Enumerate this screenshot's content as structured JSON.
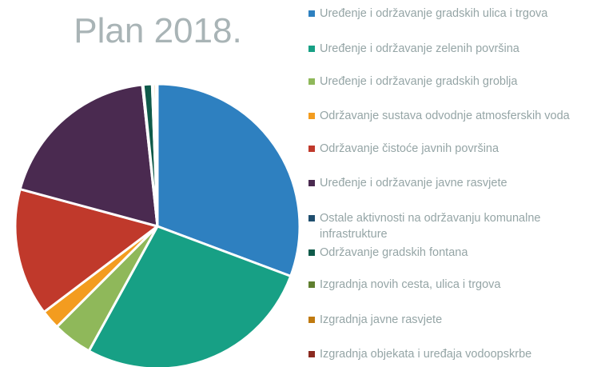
{
  "chart_data": {
    "type": "pie",
    "title": "Plan 2018.",
    "series": [
      {
        "name": "Uređenje i održavanje gradskih ulica i trgova",
        "color": "#2e80c0",
        "values": [
          30.7
        ]
      },
      {
        "name": "Uređenje i održavanje zelenih površina",
        "color": "#17a085",
        "values": [
          27.3
        ]
      },
      {
        "name": "Uređenje i održavanje gradskih groblja",
        "color": "#8fb85a",
        "values": [
          4.5
        ]
      },
      {
        "name": "Održavanje sustava odvodnje atmosferskih voda",
        "color": "#f39c1f",
        "values": [
          2.2
        ]
      },
      {
        "name": "Održavanje čistoće javnih površina",
        "color": "#c0392b",
        "values": [
          14.5
        ]
      },
      {
        "name": "Uređenje i održavanje javne rasvjete",
        "color": "#4a2a50",
        "values": [
          19.1
        ]
      },
      {
        "name": "Ostale aktivnosti na održavanju komunalne infrastrukture",
        "color": "#1f4e6e",
        "values": [
          0.1
        ]
      },
      {
        "name": "Održavanje gradskih fontana",
        "color": "#0f5a4a",
        "values": [
          1.0
        ]
      },
      {
        "name": "Izgradnja novih cesta, ulica i trgova",
        "color": "#5f7f2f",
        "values": [
          0.1
        ]
      },
      {
        "name": "Izgradnja javne rasvjete",
        "color": "#c07a10",
        "values": [
          0.3
        ]
      },
      {
        "name": "Izgradnja objekata i uređaja vodoopskrbe",
        "color": "#8b2a20",
        "values": [
          0.2
        ]
      }
    ]
  }
}
